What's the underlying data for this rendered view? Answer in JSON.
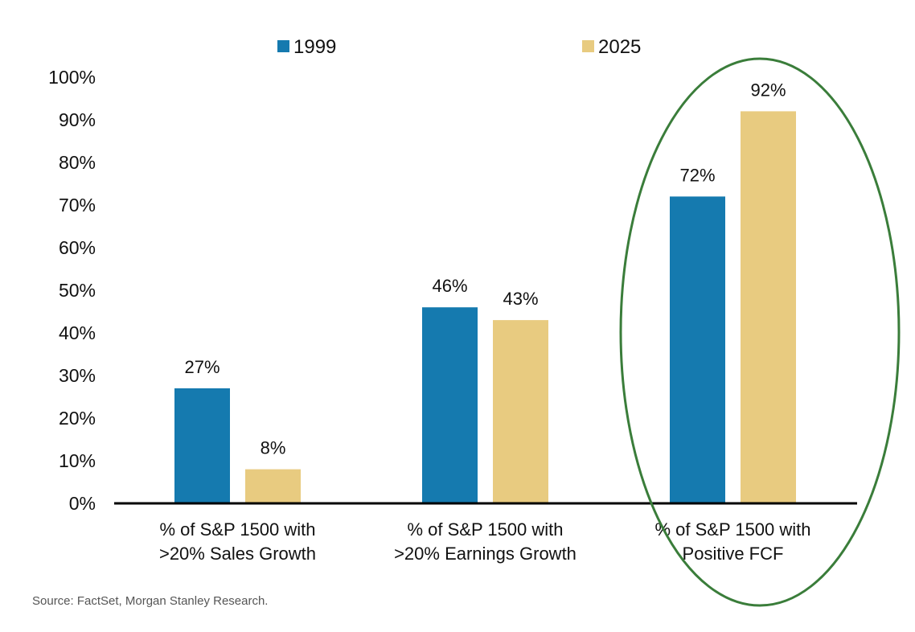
{
  "chart_data": {
    "type": "bar",
    "title": "",
    "xlabel": "",
    "ylabel": "",
    "ylim": [
      0,
      100
    ],
    "yticks": [
      "0%",
      "10%",
      "20%",
      "30%",
      "40%",
      "50%",
      "60%",
      "70%",
      "80%",
      "90%",
      "100%"
    ],
    "grid": false,
    "legend_position": "top-center",
    "categories": [
      [
        "% of S&P 1500 with",
        ">20% Sales Growth"
      ],
      [
        "% of S&P 1500 with",
        ">20% Earnings Growth"
      ],
      [
        "% of S&P 1500 with",
        "Positive FCF"
      ]
    ],
    "series": [
      {
        "name": "1999",
        "color": "#157aaf",
        "values": [
          27,
          46,
          72
        ],
        "labels": [
          "27%",
          "46%",
          "72%"
        ]
      },
      {
        "name": "2025",
        "color": "#e8cb80",
        "values": [
          8,
          43,
          92
        ],
        "labels": [
          "8%",
          "43%",
          "92%"
        ]
      }
    ],
    "annotations": [
      {
        "type": "ellipse",
        "target_category": 2,
        "color": "#3a7d3a",
        "description": "highlight around Positive FCF group"
      }
    ],
    "source": "Source: FactSet, Morgan Stanley Research."
  }
}
